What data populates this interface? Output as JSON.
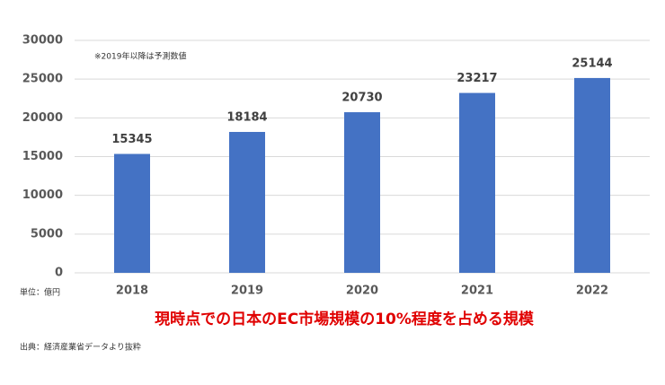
{
  "chart_data": {
    "type": "bar",
    "note": "※2019年以降は予測数値",
    "unit_label": "単位：億円",
    "caption": "現時点での日本のEC市場規模の10%程度を占める規模",
    "source": "出典：経済産業省データより抜粋",
    "categories": [
      "2018",
      "2019",
      "2020",
      "2021",
      "2022"
    ],
    "values": [
      15345,
      18184,
      20730,
      23217,
      25144
    ],
    "color": "#4472c4",
    "ylim": [
      0,
      30000
    ],
    "yticks": [
      0,
      5000,
      10000,
      15000,
      20000,
      25000,
      30000
    ],
    "grid": true
  }
}
